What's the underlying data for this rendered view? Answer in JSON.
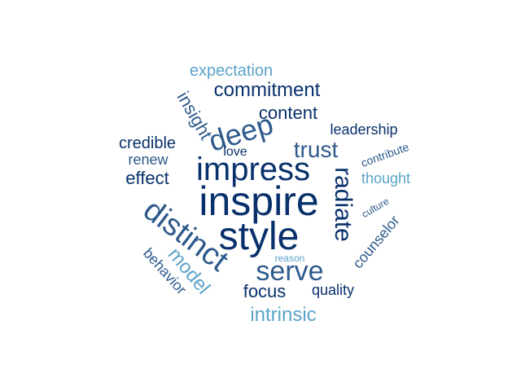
{
  "words": [
    {
      "text": "inspire",
      "color": "#08306b"
    },
    {
      "text": "style",
      "color": "#08306b"
    },
    {
      "text": "impress",
      "color": "#08306b"
    },
    {
      "text": "distinct",
      "color": "#2e5a8c"
    },
    {
      "text": "deep",
      "color": "#2e5a8c"
    },
    {
      "text": "serve",
      "color": "#2e5a8c"
    },
    {
      "text": "radiate",
      "color": "#08306b"
    },
    {
      "text": "trust",
      "color": "#2e5a8c"
    },
    {
      "text": "commitment",
      "color": "#08306b"
    },
    {
      "text": "content",
      "color": "#08306b"
    },
    {
      "text": "insight",
      "color": "#2e5a8c"
    },
    {
      "text": "expectation",
      "color": "#5ba3c9"
    },
    {
      "text": "model",
      "color": "#5ba3c9"
    },
    {
      "text": "intrinsic",
      "color": "#5ba3c9"
    },
    {
      "text": "focus",
      "color": "#08306b"
    },
    {
      "text": "effect",
      "color": "#08306b"
    },
    {
      "text": "credible",
      "color": "#08306b"
    },
    {
      "text": "renew",
      "color": "#2e5a8c"
    },
    {
      "text": "leadership",
      "color": "#08306b"
    },
    {
      "text": "counselor",
      "color": "#2e5a8c"
    },
    {
      "text": "thought",
      "color": "#5ba3c9"
    },
    {
      "text": "behavior",
      "color": "#2e5a8c"
    },
    {
      "text": "quality",
      "color": "#08306b"
    },
    {
      "text": "love",
      "color": "#08306b"
    },
    {
      "text": "contribute",
      "color": "#2e5a8c"
    },
    {
      "text": "culture",
      "color": "#2e5a8c"
    },
    {
      "text": "reason",
      "color": "#5ba3c9"
    }
  ]
}
